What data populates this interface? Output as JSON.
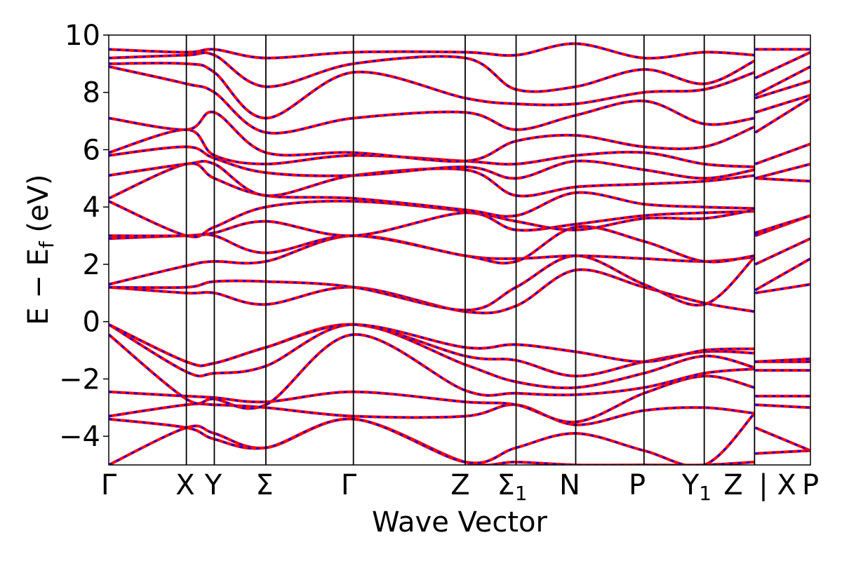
{
  "chart_data": {
    "type": "line",
    "title": "",
    "xlabel": "Wave Vector",
    "ylabel": "E − E",
    "ylabel_sub": "f",
    "ylabel_unit": " (eV)",
    "ylim": [
      -5,
      10
    ],
    "xlim": [
      0,
      9.17
    ],
    "grid": false,
    "legend": "none",
    "yticks": [
      -4,
      -2,
      0,
      2,
      4,
      6,
      8,
      10
    ],
    "ytick_labels": [
      "−4",
      "−2",
      "0",
      "2",
      "4",
      "6",
      "8",
      "10"
    ],
    "kpoints": [
      {
        "label": "Γ",
        "x": 0.0
      },
      {
        "label": "X",
        "x": 1.25
      },
      {
        "label": "Y",
        "x": 1.7
      },
      {
        "label": "Σ",
        "x": 2.53
      },
      {
        "label": "Γ",
        "x": 3.94
      },
      {
        "label": "Z",
        "x": 5.74
      },
      {
        "label": "Σ",
        "sub": "1",
        "x": 6.56
      },
      {
        "label": "N",
        "x": 7.52
      },
      {
        "label": "P",
        "x": 8.62
      },
      {
        "label": "Y",
        "sub": "1",
        "x": 9.59
      },
      {
        "label": "Z",
        "x": 10.4
      },
      {
        "label": "| X",
        "x": 10.4
      },
      {
        "label": "P",
        "x": 11.3
      }
    ],
    "kpath_x": [
      0.0,
      1.25,
      1.7,
      2.53,
      3.94,
      5.74,
      6.56,
      7.52,
      8.62,
      9.59,
      10.4,
      11.3
    ],
    "series_styles": [
      {
        "name": "",
        "color": "#ff0000",
        "dash": "solid"
      },
      {
        "name": "",
        "color": "#0000ff",
        "dash": "dashed"
      }
    ],
    "bands": [
      [
        -5.0,
        -3.7,
        -3.9,
        -4.4,
        -3.4,
        -4.9,
        -4.9,
        -5.0,
        -5.0,
        -5.0,
        -4.9,
        -4.6,
        -4.5
      ],
      [
        -3.4,
        -3.7,
        -4.1,
        -4.4,
        -3.4,
        -4.9,
        -4.4,
        -3.9,
        -4.5,
        -5.0,
        -3.2,
        -3.7,
        -4.5
      ],
      [
        -3.3,
        -2.9,
        -2.9,
        -3.0,
        -3.3,
        -3.3,
        -2.9,
        -3.6,
        -3.1,
        -3.0,
        -3.2,
        -2.9,
        -3.0
      ],
      [
        -2.45,
        -2.6,
        -2.65,
        -2.8,
        -2.45,
        -2.8,
        -2.9,
        -3.5,
        -2.5,
        -1.9,
        -2.3,
        -2.6,
        -2.6
      ],
      [
        -0.45,
        -2.7,
        -2.7,
        -2.9,
        -0.45,
        -2.4,
        -2.5,
        -2.55,
        -2.3,
        -1.8,
        -1.65,
        -1.7,
        -1.7
      ],
      [
        -0.1,
        -1.75,
        -1.8,
        -1.55,
        -0.1,
        -1.5,
        -2.1,
        -2.3,
        -1.8,
        -1.2,
        -1.6,
        -1.4,
        -1.4
      ],
      [
        -0.1,
        -1.4,
        -1.45,
        -0.9,
        -0.1,
        -1.2,
        -1.35,
        -1.9,
        -1.4,
        -1.05,
        -1.1,
        -1.4,
        -1.3
      ],
      [
        -0.1,
        -1.4,
        -1.45,
        -0.9,
        -0.1,
        -0.9,
        -0.8,
        -1.05,
        -1.4,
        -1.0,
        -0.95,
        -1.4,
        -1.3
      ],
      [
        1.2,
        1.0,
        1.0,
        0.6,
        1.2,
        0.35,
        0.55,
        1.8,
        1.2,
        0.65,
        0.35,
        1.0,
        1.3
      ],
      [
        1.2,
        1.2,
        1.4,
        1.4,
        1.2,
        0.4,
        1.2,
        2.3,
        1.3,
        0.6,
        2.25,
        1.1,
        2.2
      ],
      [
        1.3,
        1.95,
        2.1,
        2.1,
        3.0,
        2.3,
        2.2,
        2.3,
        2.2,
        2.1,
        2.25,
        2.0,
        2.9
      ],
      [
        2.9,
        3.0,
        3.0,
        2.4,
        3.0,
        2.3,
        2.1,
        3.3,
        2.8,
        2.1,
        2.3,
        3.0,
        3.7
      ],
      [
        3.0,
        3.0,
        3.1,
        3.5,
        3.0,
        3.8,
        3.2,
        3.4,
        3.7,
        3.8,
        3.85,
        3.05,
        3.7
      ],
      [
        4.2,
        3.0,
        3.3,
        4.0,
        4.2,
        3.85,
        3.5,
        3.2,
        3.6,
        3.6,
        3.9,
        3.1,
        3.7
      ],
      [
        4.3,
        5.5,
        5.0,
        4.4,
        4.3,
        3.9,
        3.7,
        4.5,
        4.1,
        4.0,
        3.95,
        5.0,
        4.9
      ],
      [
        5.1,
        5.5,
        5.5,
        4.4,
        5.1,
        5.3,
        4.4,
        4.7,
        4.8,
        4.9,
        5.1,
        5.0,
        5.5
      ],
      [
        5.8,
        6.1,
        5.7,
        5.2,
        5.1,
        5.4,
        5.0,
        5.6,
        5.3,
        5.0,
        5.3,
        5.5,
        6.2
      ],
      [
        5.9,
        6.7,
        5.8,
        5.5,
        5.8,
        5.6,
        5.5,
        5.8,
        5.9,
        5.5,
        5.4,
        6.6,
        7.8
      ],
      [
        7.1,
        6.7,
        7.3,
        5.9,
        5.9,
        5.6,
        6.3,
        6.5,
        6.1,
        6.1,
        6.8,
        7.3,
        7.9
      ],
      [
        8.9,
        8.3,
        8.0,
        6.6,
        7.1,
        7.3,
        6.7,
        7.2,
        7.7,
        6.9,
        7.1,
        7.8,
        8.4
      ],
      [
        9.0,
        9.0,
        8.7,
        7.1,
        8.7,
        7.8,
        7.6,
        7.6,
        8.0,
        8.1,
        8.7,
        7.9,
        8.9
      ],
      [
        9.2,
        9.3,
        9.3,
        8.2,
        9.0,
        9.2,
        8.1,
        8.2,
        8.8,
        8.3,
        9.1,
        8.5,
        9.4
      ],
      [
        9.5,
        9.4,
        9.5,
        9.2,
        9.4,
        9.4,
        9.3,
        9.7,
        9.2,
        9.4,
        9.3,
        9.5,
        9.5
      ]
    ]
  }
}
